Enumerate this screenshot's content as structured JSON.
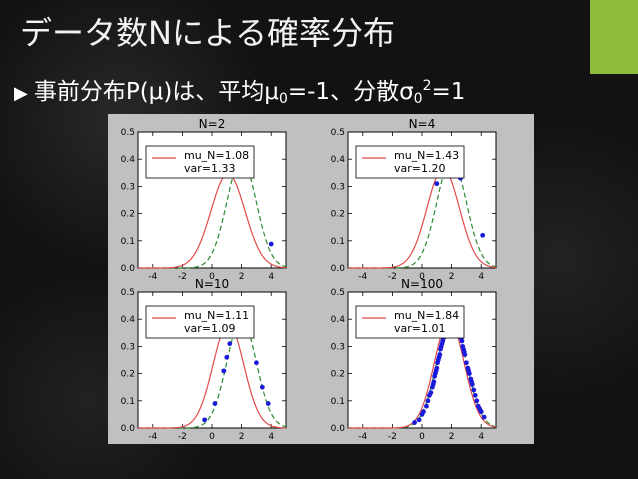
{
  "slide": {
    "title": "データ数Nによる確率分布",
    "bullet_prefix": "事前分布P(μ)は、平均μ",
    "bullet_sub0": "0",
    "bullet_mid": "=-1、分散σ",
    "bullet_sub1": "0",
    "bullet_sup": "2",
    "bullet_end": "=1",
    "accent_color": "#8dbb3c"
  },
  "chart_data": [
    {
      "type": "line",
      "title": "N=2",
      "xlim": [
        -5,
        5
      ],
      "ylim": [
        0,
        0.5
      ],
      "xticks": [
        -4,
        -2,
        0,
        2,
        4
      ],
      "yticks": [
        0.0,
        0.1,
        0.2,
        0.3,
        0.4,
        0.5
      ],
      "legend": [
        "mu_N=1.08",
        "var=1.33"
      ],
      "legend_position": "top-left",
      "posterior": {
        "mean": 1.08,
        "var": 1.33,
        "color": "#e24a4a",
        "style": "solid"
      },
      "true_dist": {
        "mean": 2,
        "var": 1,
        "color": "#2e8b2e",
        "style": "dashed"
      },
      "points": [
        [
          4.0,
          0.088
        ],
        [
          1.7,
          0.385
        ]
      ]
    },
    {
      "type": "line",
      "title": "N=4",
      "xlim": [
        -5,
        5
      ],
      "ylim": [
        0,
        0.5
      ],
      "xticks": [
        -4,
        -2,
        0,
        2,
        4
      ],
      "yticks": [
        0.0,
        0.1,
        0.2,
        0.3,
        0.4,
        0.5
      ],
      "legend": [
        "mu_N=1.43",
        "var=1.20"
      ],
      "legend_position": "top-left",
      "posterior": {
        "mean": 1.43,
        "var": 1.2,
        "color": "#e24a4a",
        "style": "solid"
      },
      "true_dist": {
        "mean": 2,
        "var": 1,
        "color": "#2e8b2e",
        "style": "dashed"
      },
      "points": [
        [
          1.0,
          0.31
        ],
        [
          2.6,
          0.33
        ],
        [
          4.1,
          0.12
        ],
        [
          1.7,
          0.39
        ]
      ]
    },
    {
      "type": "line",
      "title": "N=10",
      "xlim": [
        -5,
        5
      ],
      "ylim": [
        0,
        0.5
      ],
      "xticks": [
        -4,
        -2,
        0,
        2,
        4
      ],
      "yticks": [
        0.0,
        0.1,
        0.2,
        0.3,
        0.4,
        0.5
      ],
      "legend": [
        "mu_N=1.11",
        "var=1.09"
      ],
      "legend_position": "top-left",
      "posterior": {
        "mean": 1.11,
        "var": 1.09,
        "color": "#e24a4a",
        "style": "solid"
      },
      "true_dist": {
        "mean": 2,
        "var": 1,
        "color": "#2e8b2e",
        "style": "dashed"
      },
      "points": [
        [
          -0.5,
          0.03
        ],
        [
          0.2,
          0.09
        ],
        [
          0.8,
          0.21
        ],
        [
          1.2,
          0.31
        ],
        [
          1.6,
          0.37
        ],
        [
          2.3,
          0.39
        ],
        [
          3.0,
          0.24
        ],
        [
          3.4,
          0.15
        ],
        [
          3.8,
          0.09
        ],
        [
          1.0,
          0.26
        ]
      ]
    },
    {
      "type": "line",
      "title": "N=100",
      "xlim": [
        -5,
        5
      ],
      "ylim": [
        0,
        0.5
      ],
      "xticks": [
        -4,
        -2,
        0,
        2,
        4
      ],
      "yticks": [
        0.0,
        0.1,
        0.2,
        0.3,
        0.4,
        0.5
      ],
      "legend": [
        "mu_N=1.84",
        "var=1.01"
      ],
      "legend_position": "top-left",
      "posterior": {
        "mean": 1.84,
        "var": 1.01,
        "color": "#e24a4a",
        "style": "solid"
      },
      "true_dist": {
        "mean": 2,
        "var": 1,
        "color": "#2e8b2e",
        "style": "dashed"
      },
      "points": [
        [
          -0.5,
          0.02
        ],
        [
          -0.2,
          0.03
        ],
        [
          0.0,
          0.05
        ],
        [
          0.1,
          0.06
        ],
        [
          0.3,
          0.08
        ],
        [
          0.4,
          0.1
        ],
        [
          0.5,
          0.12
        ],
        [
          0.6,
          0.13
        ],
        [
          0.7,
          0.15
        ],
        [
          0.8,
          0.17
        ],
        [
          0.85,
          0.19
        ],
        [
          0.9,
          0.2
        ],
        [
          1.0,
          0.22
        ],
        [
          1.05,
          0.24
        ],
        [
          1.1,
          0.25
        ],
        [
          1.2,
          0.27
        ],
        [
          1.25,
          0.29
        ],
        [
          1.3,
          0.3
        ],
        [
          1.4,
          0.32
        ],
        [
          1.45,
          0.33
        ],
        [
          1.5,
          0.35
        ],
        [
          1.6,
          0.36
        ],
        [
          1.7,
          0.37
        ],
        [
          1.8,
          0.38
        ],
        [
          1.9,
          0.39
        ],
        [
          2.0,
          0.4
        ],
        [
          2.1,
          0.4
        ],
        [
          2.2,
          0.39
        ],
        [
          2.3,
          0.38
        ],
        [
          2.4,
          0.37
        ],
        [
          2.5,
          0.36
        ],
        [
          2.6,
          0.34
        ],
        [
          2.7,
          0.32
        ],
        [
          2.75,
          0.3
        ],
        [
          2.8,
          0.29
        ],
        [
          2.9,
          0.27
        ],
        [
          3.0,
          0.24
        ],
        [
          3.1,
          0.22
        ],
        [
          3.2,
          0.2
        ],
        [
          3.3,
          0.18
        ],
        [
          3.4,
          0.16
        ],
        [
          3.5,
          0.14
        ],
        [
          3.6,
          0.12
        ],
        [
          3.7,
          0.1
        ],
        [
          3.8,
          0.08
        ],
        [
          3.9,
          0.07
        ],
        [
          4.0,
          0.06
        ],
        [
          4.2,
          0.04
        ],
        [
          1.35,
          0.31
        ],
        [
          1.55,
          0.34
        ],
        [
          1.75,
          0.37
        ],
        [
          2.15,
          0.39
        ],
        [
          2.45,
          0.37
        ],
        [
          2.65,
          0.33
        ],
        [
          2.85,
          0.28
        ],
        [
          1.15,
          0.26
        ],
        [
          0.95,
          0.21
        ],
        [
          0.75,
          0.16
        ],
        [
          3.15,
          0.21
        ],
        [
          3.35,
          0.17
        ]
      ]
    }
  ]
}
